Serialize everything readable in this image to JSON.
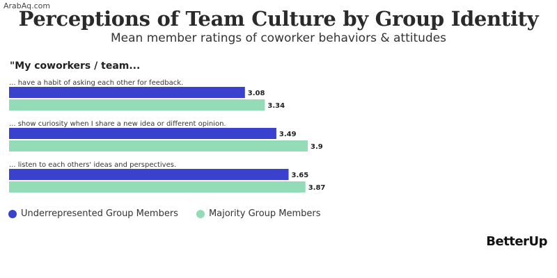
{
  "watermark": "ArabAq.com",
  "logo": "BetterUp",
  "prompt": "\"My coworkers / team...",
  "colors": {
    "underrepresented": "#3a41cc",
    "majority": "#93dcb7",
    "label_text": "#222222"
  },
  "chart_data": {
    "type": "bar",
    "orientation": "horizontal",
    "title": "Perceptions of Team Culture by Group Identity",
    "subtitle": "Mean member ratings of coworker behaviors & attitudes",
    "categories": [
      "... have a habit of asking each other for feedback.",
      "... show curiosity when I share a new idea or different opinion.",
      "... listen to each others' ideas and perspectives."
    ],
    "series": [
      {
        "name": "Underrepresented Group Members",
        "values": [
          3.08,
          3.49,
          3.65
        ],
        "value_labels": [
          "3.08",
          "3.49",
          "3.65"
        ]
      },
      {
        "name": "Majority Group Members",
        "values": [
          3.34,
          3.9,
          3.87
        ],
        "value_labels": [
          "3.34",
          "3.9",
          "3.87"
        ]
      }
    ],
    "xlim": [
      0,
      4.35
    ],
    "grid": false,
    "legend_position": "bottom-left"
  }
}
